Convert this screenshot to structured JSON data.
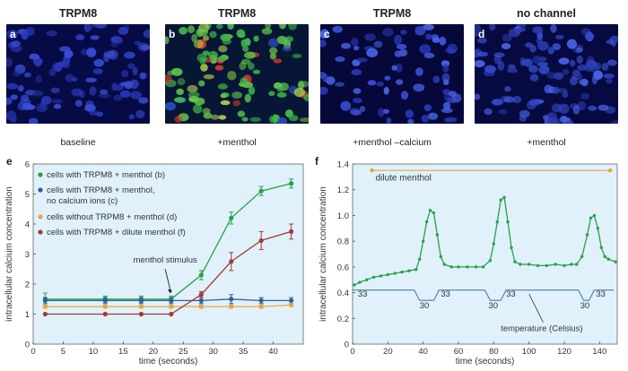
{
  "panels": [
    {
      "letter": "a",
      "title": "TRPM8",
      "caption": "baseline"
    },
    {
      "letter": "b",
      "title": "TRPM8",
      "caption": "+menthol"
    },
    {
      "letter": "c",
      "title": "TRPM8",
      "caption": "+menthol –calcium"
    },
    {
      "letter": "d",
      "title": "no channel",
      "caption": "+menthol"
    }
  ],
  "colors": {
    "chart_bg": "#e0f1fb",
    "green": "#2aa04a",
    "blue": "#2e5f9a",
    "orange": "#e5a93a",
    "red": "#a23b33",
    "temp_line": "#4a7fb0",
    "micro_bg": "#06093a"
  },
  "chart_data": [
    {
      "letter": "e",
      "type": "line",
      "xlabel": "time (seconds)",
      "ylabel": "intracellular calcium concentration",
      "xlim": [
        0,
        45
      ],
      "ylim": [
        0,
        6
      ],
      "xticks": [
        0,
        5,
        10,
        15,
        20,
        25,
        30,
        35,
        40
      ],
      "yticks": [
        0,
        1,
        2,
        3,
        4,
        5,
        6
      ],
      "x": [
        2,
        12,
        18,
        23,
        28,
        33,
        38,
        43
      ],
      "annotation": "menthol stimulus",
      "series": [
        {
          "name": "cells with TRPM8 + menthol (b)",
          "color_key": "green",
          "values": [
            1.5,
            1.5,
            1.5,
            1.5,
            2.3,
            4.2,
            5.1,
            5.35
          ],
          "errors": [
            0.2,
            0.1,
            0.1,
            0.1,
            0.15,
            0.2,
            0.15,
            0.15
          ]
        },
        {
          "name": "cells with TRPM8 + menthol, no calcium ions (c)",
          "color_key": "blue",
          "values": [
            1.45,
            1.45,
            1.45,
            1.45,
            1.45,
            1.5,
            1.45,
            1.45
          ],
          "errors": [
            0.1,
            0.1,
            0.1,
            0.1,
            0.1,
            0.15,
            0.1,
            0.1
          ]
        },
        {
          "name": "cells without TRPM8 + menthol (d)",
          "color_key": "orange",
          "values": [
            1.25,
            1.25,
            1.25,
            1.25,
            1.25,
            1.25,
            1.25,
            1.3
          ],
          "errors": [
            0.05,
            0.05,
            0.05,
            0.05,
            0.05,
            0.05,
            0.05,
            0.05
          ]
        },
        {
          "name": "cells with TRPM8 + dilute menthol (f)",
          "color_key": "red",
          "values": [
            1.0,
            1.0,
            1.0,
            1.0,
            1.65,
            2.75,
            3.45,
            3.75
          ],
          "errors": [
            0,
            0,
            0,
            0,
            0.1,
            0.3,
            0.3,
            0.25
          ]
        }
      ]
    },
    {
      "letter": "f",
      "type": "line",
      "xlabel": "time (seconds)",
      "ylabel": "intracellular calcium concentration",
      "xlim": [
        0,
        150
      ],
      "ylim": [
        0,
        1.4
      ],
      "xticks": [
        0,
        20,
        40,
        60,
        80,
        100,
        120,
        140
      ],
      "yticks": [
        0,
        0.2,
        0.4,
        0.6,
        0.8,
        1.0,
        1.2,
        1.4
      ],
      "ytick_labels": [
        "0",
        "0.2",
        "0.4",
        "0.6",
        "0.8",
        "1.0",
        "1.2",
        "1.4"
      ],
      "menthol_bar": {
        "label": "dilute menthol",
        "x": [
          11,
          146
        ],
        "y": 1.35
      },
      "calcium": {
        "x": [
          1,
          4,
          8,
          12,
          16,
          20,
          24,
          28,
          32,
          36,
          38,
          40,
          42,
          44,
          46,
          48,
          50,
          52,
          56,
          60,
          65,
          70,
          74,
          78,
          80,
          82,
          84,
          86,
          88,
          90,
          92,
          95,
          100,
          105,
          110,
          115,
          120,
          124,
          127,
          130,
          133,
          135,
          137,
          139,
          141,
          143,
          145,
          149
        ],
        "y": [
          0.46,
          0.48,
          0.5,
          0.52,
          0.53,
          0.54,
          0.55,
          0.56,
          0.57,
          0.58,
          0.66,
          0.8,
          0.95,
          1.04,
          1.02,
          0.85,
          0.68,
          0.62,
          0.6,
          0.6,
          0.6,
          0.6,
          0.6,
          0.65,
          0.78,
          0.95,
          1.12,
          1.14,
          0.95,
          0.75,
          0.64,
          0.62,
          0.62,
          0.61,
          0.61,
          0.62,
          0.61,
          0.62,
          0.62,
          0.68,
          0.85,
          0.98,
          1.0,
          0.9,
          0.75,
          0.68,
          0.66,
          0.64
        ]
      },
      "temperature": {
        "label": "temperature (Celsius)",
        "x": [
          0,
          35,
          38,
          46,
          49,
          75,
          78,
          84,
          87,
          128,
          131,
          134,
          137,
          148
        ],
        "y": [
          0.42,
          0.42,
          0.34,
          0.34,
          0.42,
          0.42,
          0.34,
          0.34,
          0.42,
          0.42,
          0.34,
          0.34,
          0.42,
          0.42
        ],
        "labels": [
          {
            "text": "33",
            "x": 3,
            "y": 0.37
          },
          {
            "text": "30",
            "x": 38,
            "y": 0.28
          },
          {
            "text": "33",
            "x": 50,
            "y": 0.37
          },
          {
            "text": "30",
            "x": 77,
            "y": 0.28
          },
          {
            "text": "33",
            "x": 87,
            "y": 0.37
          },
          {
            "text": "30",
            "x": 129,
            "y": 0.28
          },
          {
            "text": "33",
            "x": 138,
            "y": 0.37
          }
        ]
      }
    }
  ]
}
